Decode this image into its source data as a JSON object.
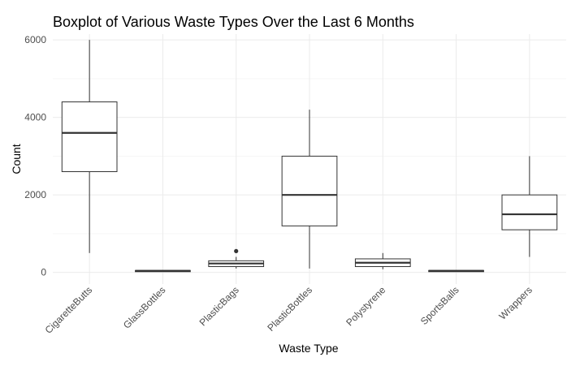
{
  "chart_data": {
    "type": "boxplot",
    "title": "Boxplot of Various Waste Types Over the Last 6 Months",
    "xlabel": "Waste Type",
    "ylabel": "Count",
    "ylim": [
      -300,
      6150
    ],
    "yticks": [
      0,
      2000,
      4000,
      6000
    ],
    "grid": true,
    "categories": [
      "CigaretteButts",
      "GlassBottles",
      "PlasticBags",
      "PlasticBottles",
      "Polystyrene",
      "SportsBalls",
      "Wrappers"
    ],
    "boxes": [
      {
        "category": "CigaretteButts",
        "min": 500,
        "q1": 2600,
        "median": 3600,
        "q3": 4400,
        "max": 6000,
        "outliers": []
      },
      {
        "category": "GlassBottles",
        "min": 30,
        "q1": 30,
        "median": 40,
        "q3": 50,
        "max": 50,
        "outliers": []
      },
      {
        "category": "PlasticBags",
        "min": 100,
        "q1": 150,
        "median": 230,
        "q3": 300,
        "max": 400,
        "outliers": [
          550
        ]
      },
      {
        "category": "PlasticBottles",
        "min": 100,
        "q1": 1200,
        "median": 2000,
        "q3": 3000,
        "max": 4200,
        "outliers": []
      },
      {
        "category": "Polystyrene",
        "min": 80,
        "q1": 150,
        "median": 250,
        "q3": 350,
        "max": 500,
        "outliers": []
      },
      {
        "category": "SportsBalls",
        "min": 30,
        "q1": 30,
        "median": 40,
        "q3": 50,
        "max": 50,
        "outliers": []
      },
      {
        "category": "Wrappers",
        "min": 400,
        "q1": 1100,
        "median": 1500,
        "q3": 2000,
        "max": 3000,
        "outliers": []
      }
    ]
  }
}
